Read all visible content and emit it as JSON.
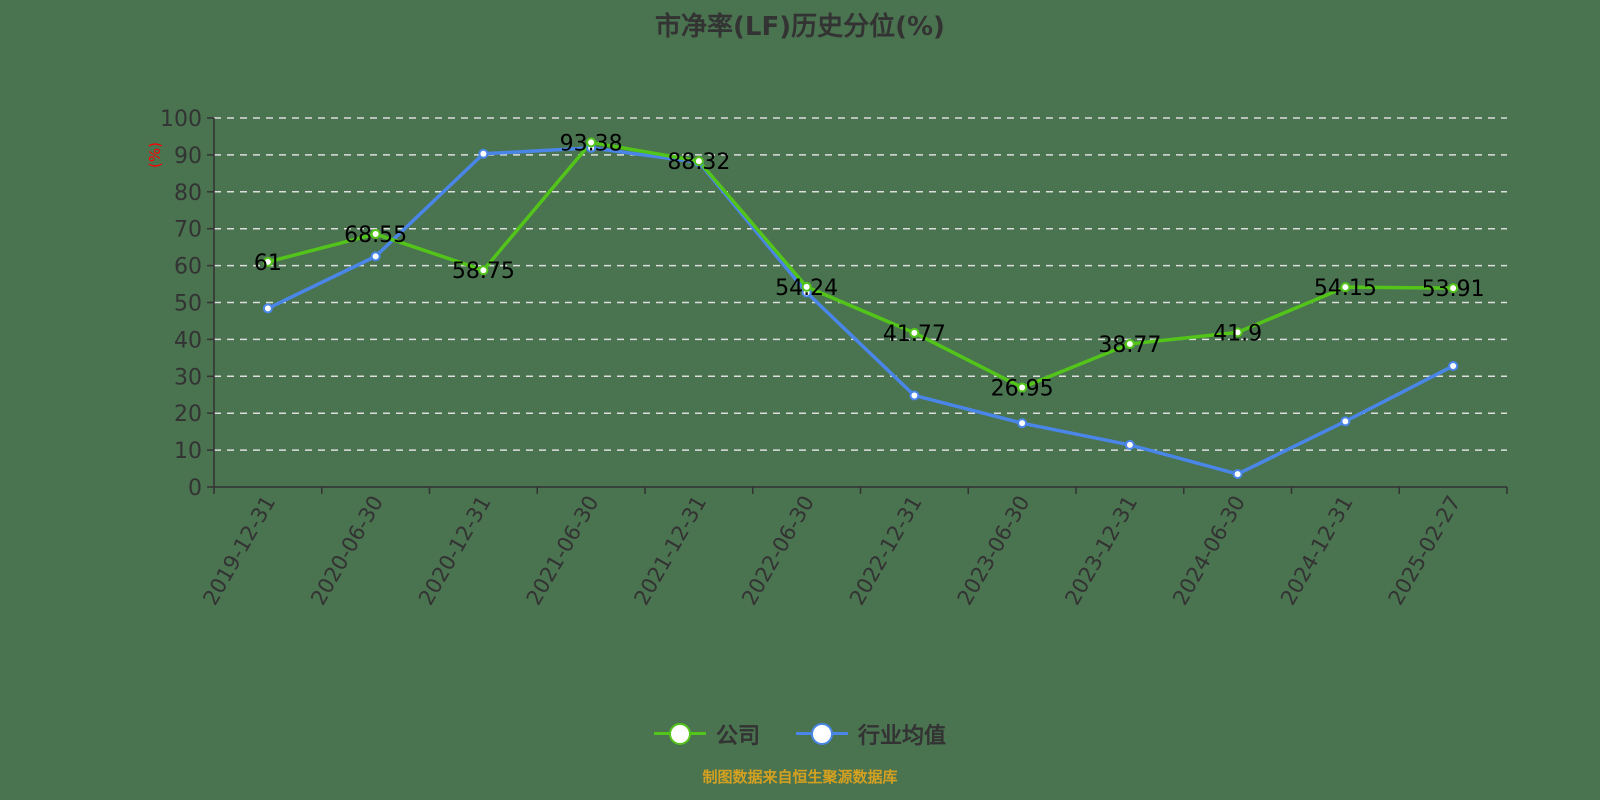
{
  "title": "市净率(LF)历史分位(%)",
  "y_unit_label": "(%)",
  "legend": [
    {
      "label": "公司",
      "color": "#52c41a"
    },
    {
      "label": "行业均值",
      "color": "#4a86e8"
    }
  ],
  "source": "制图数据来自恒生聚源数据库",
  "chart_data": {
    "type": "line",
    "title": "市净率(LF)历史分位(%)",
    "xlabel": "",
    "ylabel": "(%)",
    "ylim": [
      0,
      100
    ],
    "yticks": [
      0,
      10,
      20,
      30,
      40,
      50,
      60,
      70,
      80,
      90,
      100
    ],
    "grid": true,
    "legend_position": "bottom",
    "categories": [
      "2019-12-31",
      "2020-06-30",
      "2020-12-31",
      "2021-06-30",
      "2021-12-31",
      "2022-06-30",
      "2022-12-31",
      "2023-06-30",
      "2023-12-31",
      "2024-06-30",
      "2024-12-31",
      "2025-02-27"
    ],
    "series": [
      {
        "name": "公司",
        "color": "#52c41a",
        "labels_shown": true,
        "values": [
          61,
          68.55,
          58.75,
          93.38,
          88.32,
          54.24,
          41.77,
          26.95,
          38.77,
          41.9,
          54.15,
          53.91
        ]
      },
      {
        "name": "行业均值",
        "color": "#4a86e8",
        "labels_shown": false,
        "values": [
          48.4,
          62.5,
          90.3,
          91.9,
          88.0,
          52.7,
          24.8,
          17.3,
          11.4,
          3.5,
          17.8,
          32.8
        ]
      }
    ]
  }
}
